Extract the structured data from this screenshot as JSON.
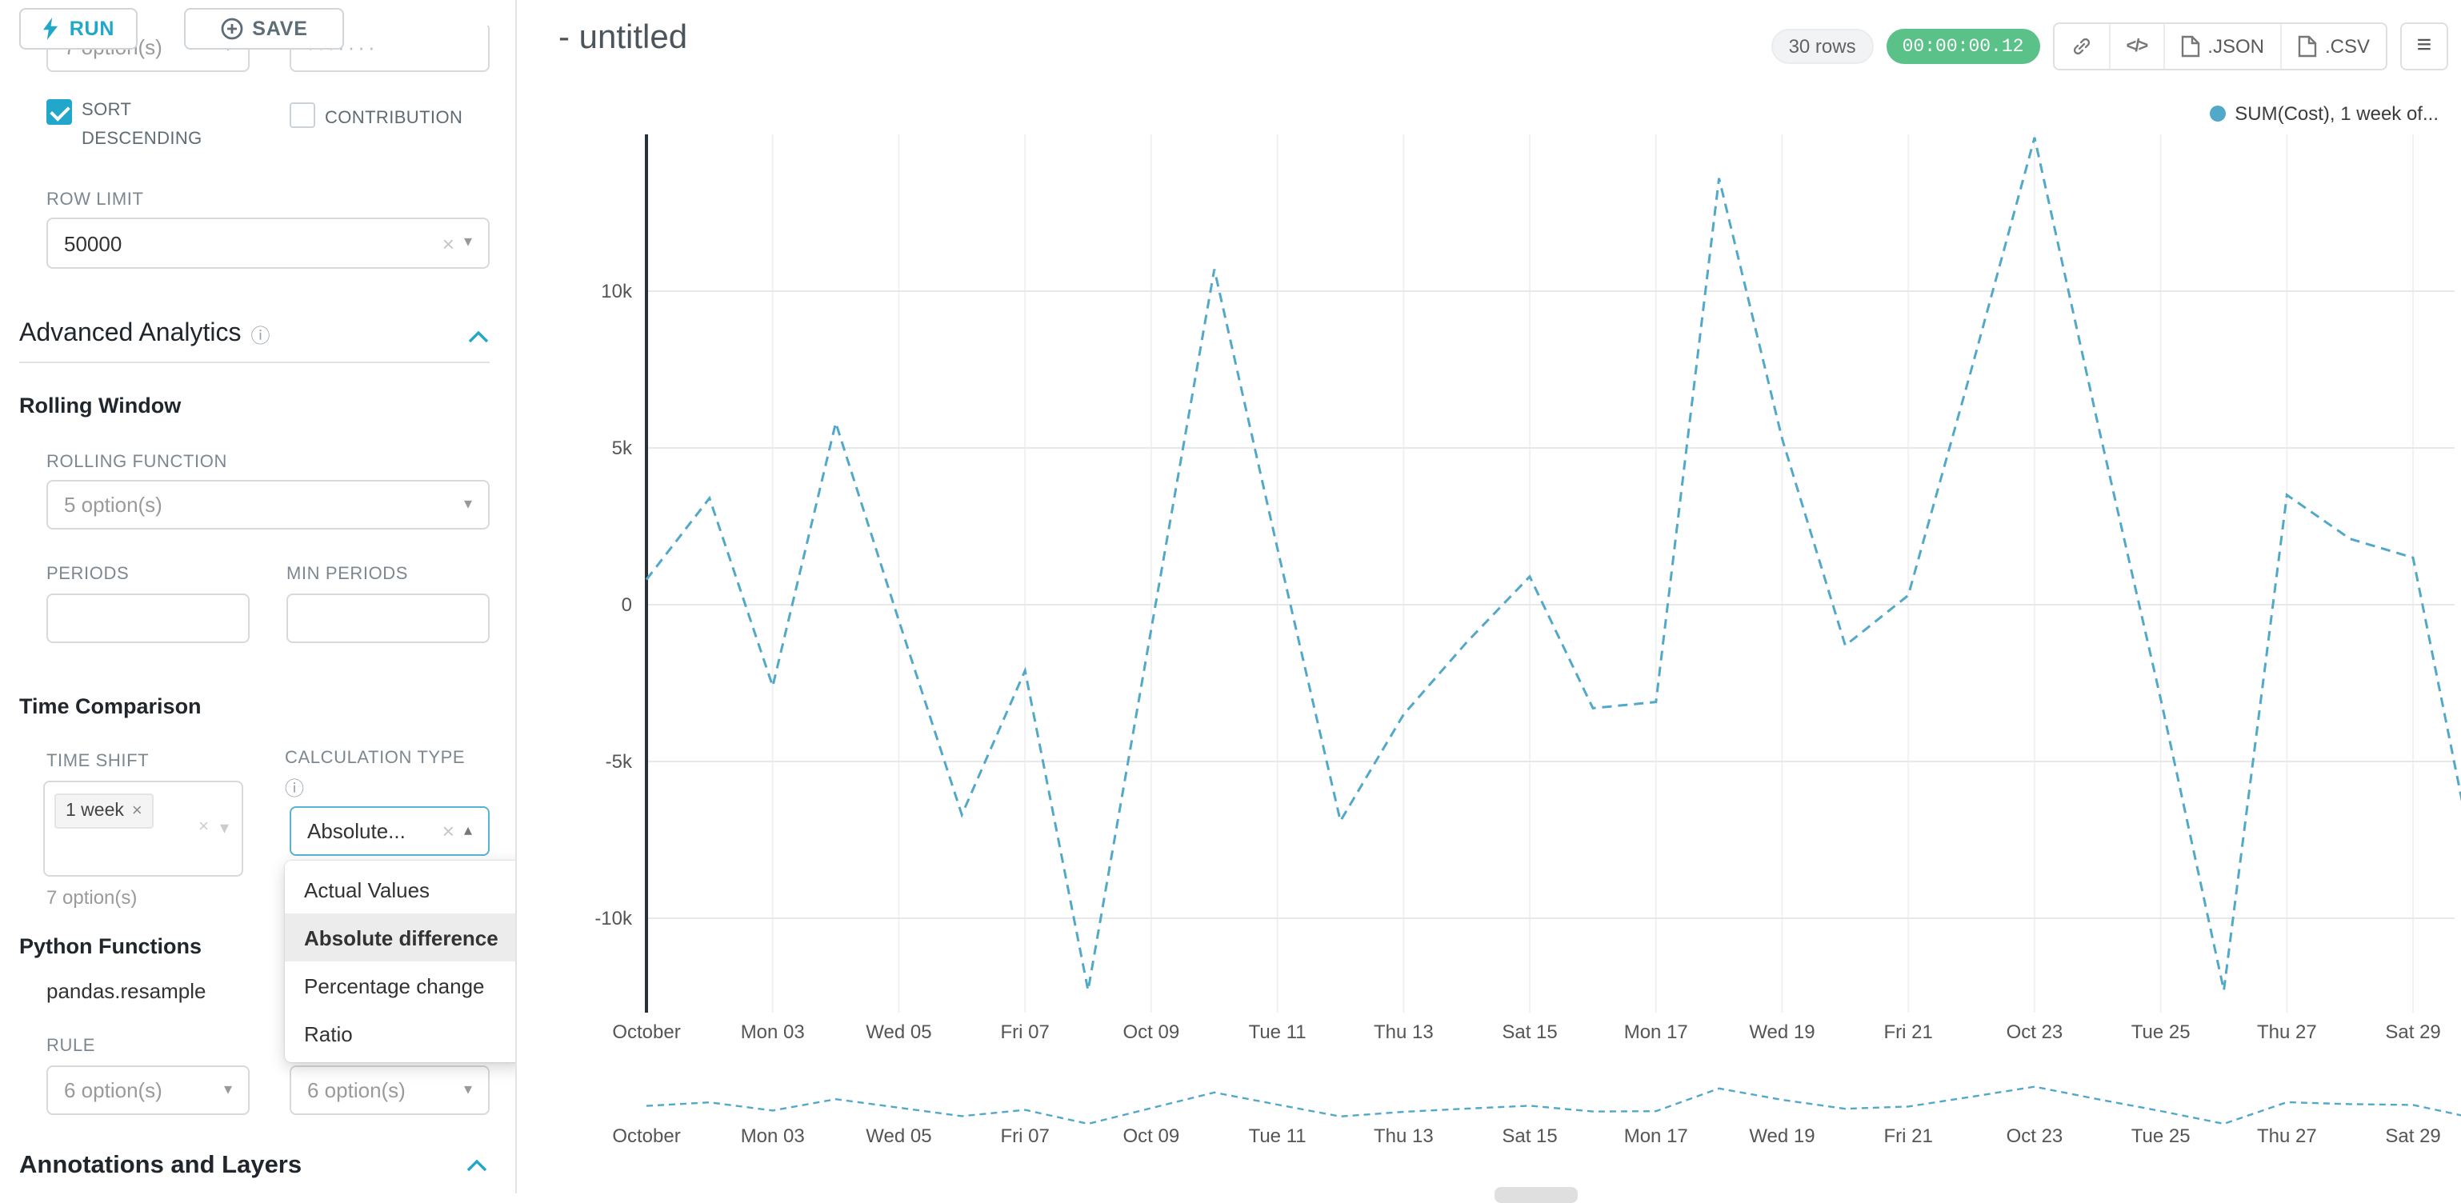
{
  "colors": {
    "accent": "#20a7c9",
    "success": "#5ac189",
    "line": "#51a8c9"
  },
  "icons": {
    "caret_down": "▾",
    "caret_up": "▴",
    "clear": "×",
    "info": "ⓘ",
    "menu": "≡",
    "code": "</>",
    "dots": "·······",
    "tag_remove": "×"
  },
  "toolbar": {
    "run": "RUN",
    "save": "SAVE"
  },
  "panel": {
    "top_select_value": "7 option(s)",
    "sort_descending": "SORT DESCENDING",
    "contribution": "CONTRIBUTION",
    "row_limit_label": "ROW LIMIT",
    "row_limit_value": "50000",
    "advanced_analytics": "Advanced Analytics",
    "rolling_window": "Rolling Window",
    "rolling_function_label": "ROLLING FUNCTION",
    "rolling_function_value": "5 option(s)",
    "periods_label": "PERIODS",
    "min_periods_label": "MIN PERIODS",
    "time_comparison": "Time Comparison",
    "time_shift_label": "TIME SHIFT",
    "time_shift_tag": "1 week",
    "time_shift_hint": "7 option(s)",
    "calculation_type_label": "CALCULATION TYPE",
    "calculation_type_value": "Absolute...",
    "calc_options": [
      "Actual Values",
      "Absolute difference",
      "Percentage change",
      "Ratio"
    ],
    "calc_selected_index": 1,
    "python_functions": "Python Functions",
    "pandas_resample": "pandas.resample",
    "rule_label": "RULE",
    "rule_value": "6 option(s)",
    "method_value": "6 option(s)",
    "annotations": "Annotations and Layers"
  },
  "header": {
    "title": "- untitled",
    "rows": "30 rows",
    "timer": "00:00:00.12",
    "json": ".JSON",
    "csv": ".CSV"
  },
  "chart_data": {
    "type": "line",
    "title": "",
    "line_style": "dashed",
    "color": "#51a8c9",
    "legend": [
      {
        "label": "SUM(Cost), 1 week of...",
        "color": "#51a8c9"
      }
    ],
    "legend_position": "top-right",
    "grid": true,
    "x_unit": "day of October",
    "x_ticks": [
      {
        "day": 0,
        "label": "October"
      },
      {
        "day": 2,
        "label": "Mon 03"
      },
      {
        "day": 4,
        "label": "Wed 05"
      },
      {
        "day": 6,
        "label": "Fri 07"
      },
      {
        "day": 8,
        "label": "Oct 09"
      },
      {
        "day": 10,
        "label": "Tue 11"
      },
      {
        "day": 12,
        "label": "Thu 13"
      },
      {
        "day": 14,
        "label": "Sat 15"
      },
      {
        "day": 16,
        "label": "Mon 17"
      },
      {
        "day": 18,
        "label": "Wed 19"
      },
      {
        "day": 20,
        "label": "Fri 21"
      },
      {
        "day": 22,
        "label": "Oct 23"
      },
      {
        "day": 24,
        "label": "Tue 25"
      },
      {
        "day": 26,
        "label": "Thu 27"
      },
      {
        "day": 28,
        "label": "Sat 29"
      }
    ],
    "y_ticks": [
      {
        "value": 10000,
        "label": "10k"
      },
      {
        "value": 5000,
        "label": "5k"
      },
      {
        "value": 0,
        "label": "0"
      },
      {
        "value": -5000,
        "label": "-5k"
      },
      {
        "value": -10000,
        "label": "-10k"
      }
    ],
    "ylim": [
      -13000,
      15500
    ],
    "values": [
      800,
      3400,
      -2600,
      5800,
      -500,
      -6700,
      -2100,
      -12300,
      -800,
      10700,
      1800,
      -6900,
      -3500,
      -1200,
      900,
      -3300,
      -3100,
      13600,
      5300,
      -1300,
      300,
      7500,
      14900,
      5800,
      -3000,
      -12300,
      3500,
      2100,
      1500,
      -8500
    ]
  }
}
